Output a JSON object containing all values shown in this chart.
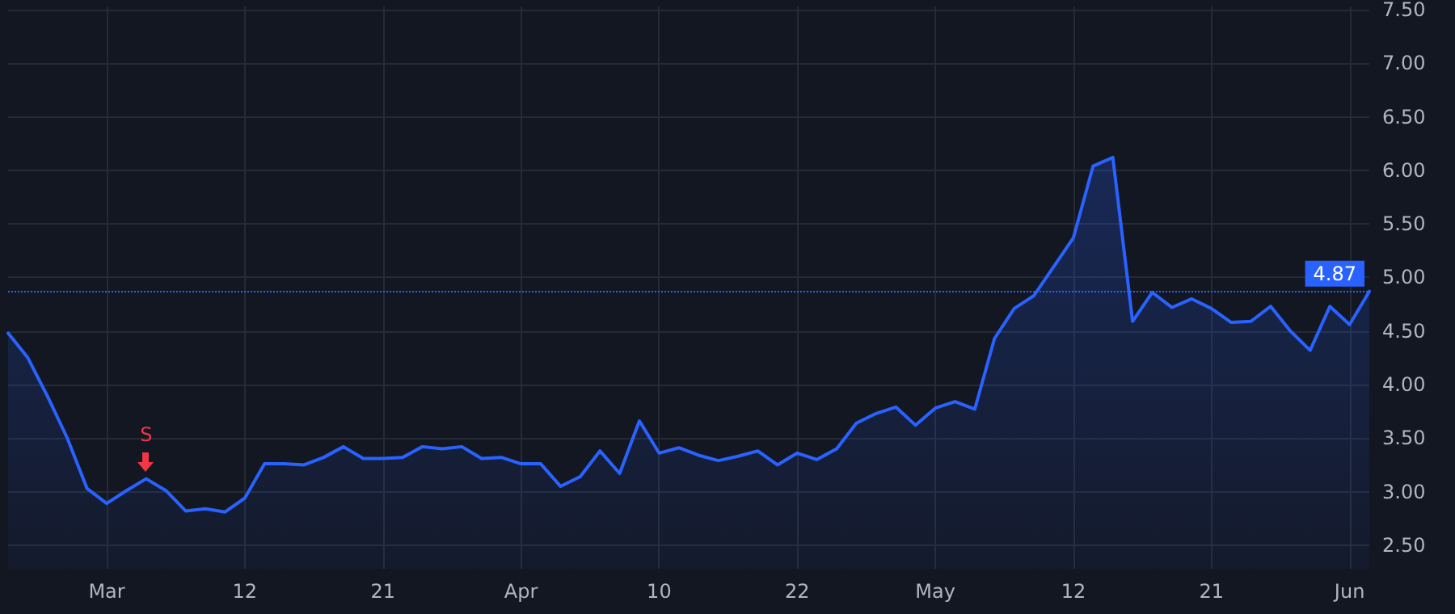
{
  "chart_data": {
    "type": "area",
    "categories": [
      null,
      null,
      null,
      null,
      null,
      "Mar",
      null,
      null,
      null,
      null,
      null,
      null,
      "12",
      null,
      null,
      null,
      null,
      null,
      null,
      "21",
      null,
      null,
      null,
      null,
      null,
      null,
      "Apr",
      null,
      null,
      null,
      null,
      null,
      null,
      "10",
      null,
      null,
      null,
      null,
      null,
      null,
      "22",
      null,
      null,
      null,
      null,
      null,
      null,
      "May",
      null,
      null,
      null,
      null,
      null,
      null,
      "12",
      null,
      null,
      null,
      null,
      null,
      null,
      "21",
      null,
      null,
      null,
      null,
      null,
      null,
      "Jun",
      null
    ],
    "series": [
      {
        "color": "#2962ff",
        "values": [
          4.48,
          4.25,
          3.89,
          3.5,
          3.03,
          2.89,
          3.01,
          3.12,
          3.01,
          2.82,
          2.84,
          2.81,
          2.94,
          3.26,
          3.26,
          3.25,
          3.32,
          3.42,
          3.31,
          3.31,
          3.32,
          3.42,
          3.4,
          3.42,
          3.31,
          3.32,
          3.26,
          3.26,
          3.05,
          3.14,
          3.38,
          3.17,
          3.66,
          3.36,
          3.41,
          3.34,
          3.29,
          3.33,
          3.38,
          3.25,
          3.36,
          3.3,
          3.4,
          3.64,
          3.73,
          3.79,
          3.62,
          3.78,
          3.84,
          3.77,
          4.43,
          4.71,
          4.83,
          5.1,
          5.37,
          6.04,
          6.12,
          4.59,
          4.86,
          4.72,
          4.8,
          4.71,
          4.58,
          4.59,
          4.73,
          4.5,
          4.32,
          4.73,
          4.56,
          4.87
        ]
      }
    ],
    "ylim": [
      2.28,
      7.53
    ],
    "yticks": [
      {
        "value": 2.5,
        "label": "2.50"
      },
      {
        "value": 3,
        "label": "3.00"
      },
      {
        "value": 3.5,
        "label": "3.50"
      },
      {
        "value": 4,
        "label": "4.00"
      },
      {
        "value": 4.5,
        "label": "4.50"
      },
      {
        "value": 5,
        "label": "5.00"
      },
      {
        "value": 5.5,
        "label": "5.50"
      },
      {
        "value": 6,
        "label": "6.00"
      },
      {
        "value": 6.5,
        "label": "6.50"
      },
      {
        "value": 7,
        "label": "7.00"
      },
      {
        "value": 7.5,
        "label": "7.50"
      }
    ],
    "ref_lines": [
      {
        "axis": "y",
        "value": 4.87,
        "label": "4.87",
        "color": "#2962ff",
        "line_style": "dotted"
      }
    ],
    "annotations": [
      {
        "text": "S",
        "y": 3.12
      }
    ],
    "grid": true,
    "marker": "none",
    "line_style": "solid"
  }
}
